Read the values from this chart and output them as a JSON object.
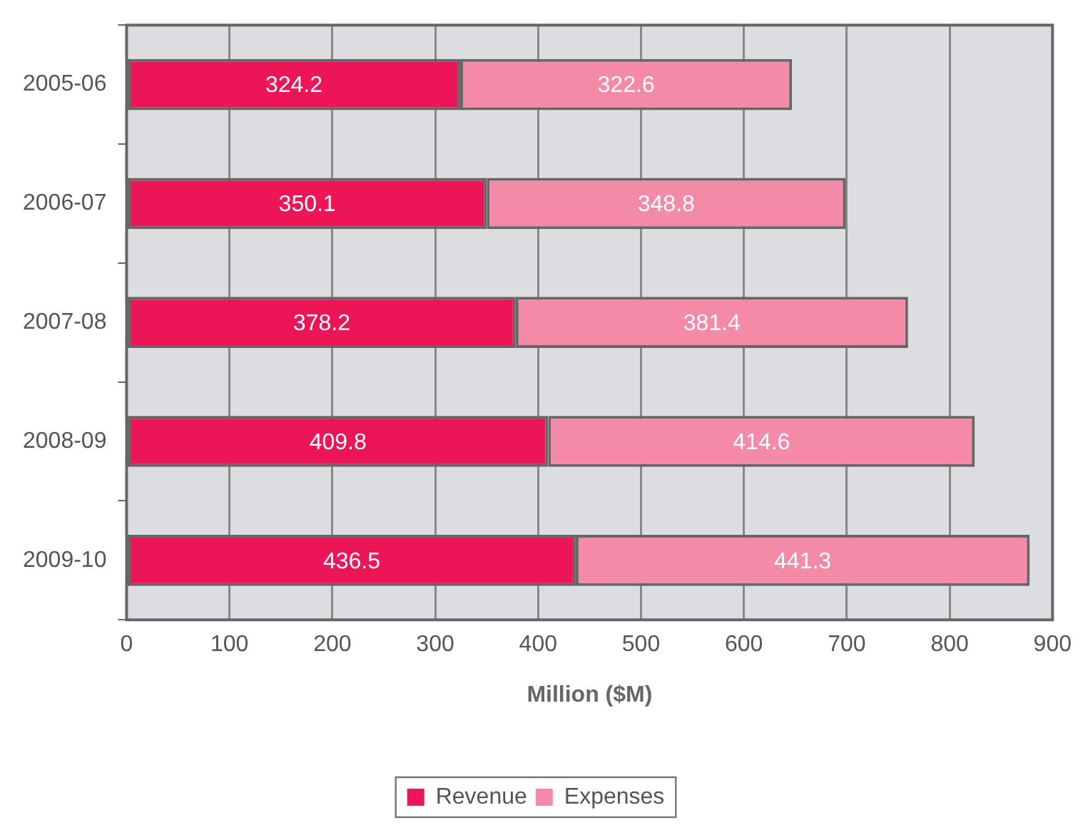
{
  "chart_data": {
    "type": "bar",
    "orientation": "horizontal",
    "stacked": true,
    "xlabel": "Million ($M)",
    "categories": [
      "2005-06",
      "2006-07",
      "2007-08",
      "2008-09",
      "2009-10"
    ],
    "series": [
      {
        "name": "Revenue",
        "color": "#ec1558",
        "values": [
          324.2,
          350.1,
          378.2,
          409.8,
          436.5
        ]
      },
      {
        "name": "Expenses",
        "color": "#f58aa8",
        "values": [
          322.6,
          348.8,
          381.4,
          414.6,
          441.3
        ]
      }
    ],
    "xlim": [
      0,
      900
    ],
    "xticks": [
      0,
      100,
      200,
      300,
      400,
      500,
      600,
      700,
      800,
      900
    ],
    "grid": "x",
    "legend": "bottom",
    "data_labels": true
  }
}
